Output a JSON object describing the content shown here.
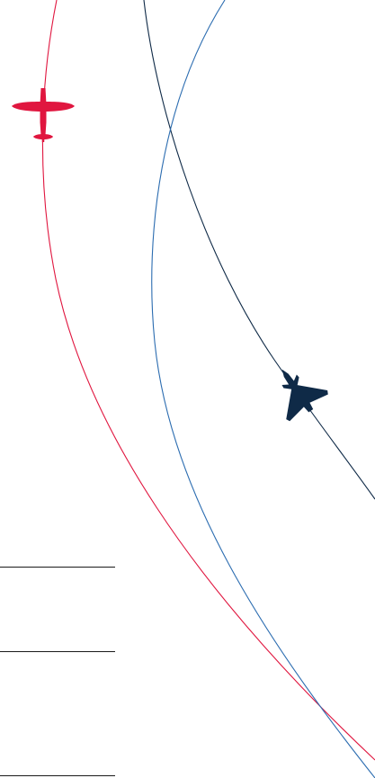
{
  "colors": {
    "background": "#ffffff",
    "red_trail": "#e0163f",
    "navy_trail": "#0f2a47",
    "blue_trail": "#2b6cb0",
    "red_plane": "#e0163f",
    "navy_jet": "#0f2a47",
    "divider": "#1a1a1a"
  },
  "icons": {
    "red_plane": "spitfire-silhouette-icon",
    "navy_jet": "delta-wing-jet-silhouette-icon"
  }
}
